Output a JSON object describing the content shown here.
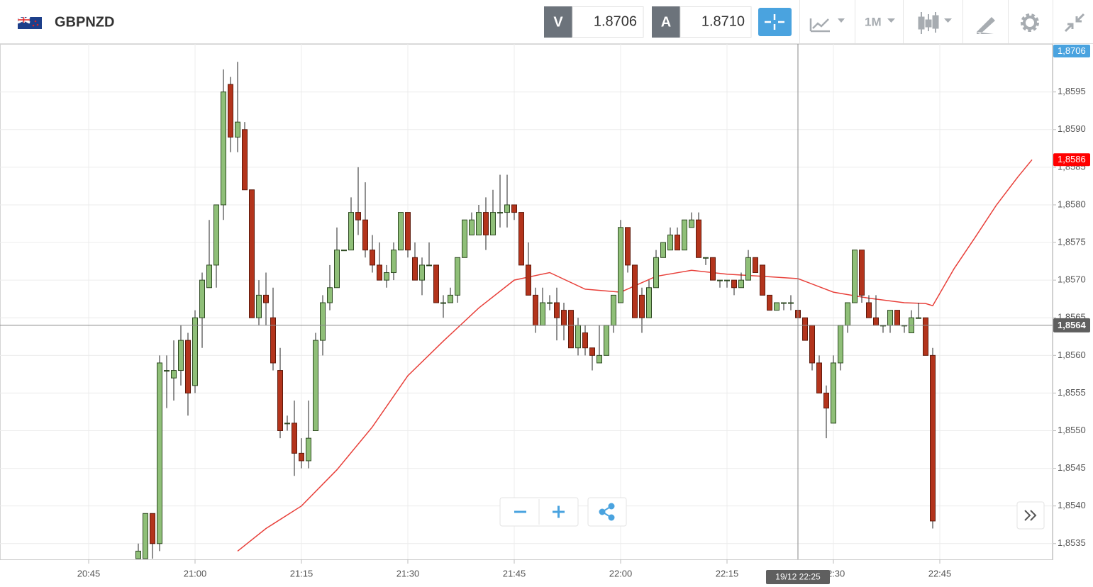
{
  "header": {
    "symbol": "GBPNZD",
    "sell_label": "V",
    "sell_price": "1.8706",
    "buy_label": "A",
    "buy_price": "1.8710",
    "timeframe": "1M"
  },
  "chart_data": {
    "type": "candlestick",
    "x": [
      "20:52",
      "20:53",
      "20:54",
      "20:55",
      "20:56",
      "20:57",
      "20:58",
      "20:59",
      "21:00",
      "21:01",
      "21:02",
      "21:03",
      "21:04",
      "21:05",
      "21:06",
      "21:07",
      "21:08",
      "21:09",
      "21:10",
      "21:11",
      "21:12",
      "21:13",
      "21:14",
      "21:15",
      "21:16",
      "21:17",
      "21:18",
      "21:19",
      "21:20",
      "21:21",
      "21:22",
      "21:23",
      "21:24",
      "21:25",
      "21:26",
      "21:27",
      "21:28",
      "21:29",
      "21:30",
      "21:31",
      "21:32",
      "21:33",
      "21:34",
      "21:35",
      "21:36",
      "21:37",
      "21:38",
      "21:39",
      "21:40",
      "21:41",
      "21:42",
      "21:43",
      "21:44",
      "21:45",
      "21:46",
      "21:47",
      "21:48",
      "21:49",
      "21:50",
      "21:51",
      "21:52",
      "21:53",
      "21:54",
      "21:55",
      "21:56",
      "21:57",
      "21:58",
      "21:59",
      "22:00",
      "22:01",
      "22:02",
      "22:03",
      "22:04",
      "22:05",
      "22:06",
      "22:07",
      "22:08",
      "22:09",
      "22:10",
      "22:11",
      "22:12",
      "22:13",
      "22:14",
      "22:15",
      "22:16",
      "22:17",
      "22:18",
      "22:19",
      "22:20",
      "22:21",
      "22:22",
      "22:23",
      "22:24",
      "22:25",
      "22:26",
      "22:27",
      "22:28",
      "22:29",
      "22:30",
      "22:31",
      "22:32",
      "22:33",
      "22:34",
      "22:35",
      "22:36",
      "22:37",
      "22:38",
      "22:39",
      "22:40",
      "22:41",
      "22:42",
      "22:43",
      "22:44"
    ],
    "open": [
      1.8533,
      1.8533,
      1.8539,
      1.8535,
      1.8558,
      1.8557,
      1.8558,
      1.8562,
      1.8556,
      1.8565,
      1.8569,
      1.8572,
      1.858,
      1.8596,
      1.8589,
      1.859,
      1.8582,
      1.8565,
      1.8568,
      1.8565,
      1.8558,
      1.8551,
      1.8551,
      1.8547,
      1.8546,
      1.855,
      1.8562,
      1.8567,
      1.8569,
      1.8574,
      1.8574,
      1.8579,
      1.8578,
      1.8574,
      1.8572,
      1.857,
      1.8571,
      1.8574,
      1.8579,
      1.8573,
      1.857,
      1.8572,
      1.8572,
      1.8567,
      1.8567,
      1.8568,
      1.8573,
      1.8576,
      1.8576,
      1.8579,
      1.8576,
      1.8579,
      1.8579,
      1.858,
      1.8579,
      1.8572,
      1.8568,
      1.8564,
      1.8567,
      1.8567,
      1.8566,
      1.8566,
      1.8561,
      1.8563,
      1.8561,
      1.8559,
      1.856,
      1.8564,
      1.8567,
      1.8577,
      1.8572,
      1.8568,
      1.8565,
      1.8569,
      1.8573,
      1.8574,
      1.8576,
      1.8574,
      1.8577,
      1.8578,
      1.8573,
      1.8573,
      1.857,
      1.857,
      1.857,
      1.8569,
      1.857,
      1.8573,
      1.8572,
      1.8568,
      1.8566,
      1.8567,
      1.8567,
      1.8566,
      1.8565,
      1.8564,
      1.8559,
      1.8555,
      1.8551,
      1.8559,
      1.8564,
      1.8567,
      1.8574,
      1.8567,
      1.8565,
      1.8564,
      1.8564,
      1.8566,
      1.8564,
      1.8563,
      1.8565,
      1.8565,
      1.856
    ],
    "high": [
      1.8535,
      1.8539,
      1.8539,
      1.856,
      1.856,
      1.8562,
      1.8564,
      1.8563,
      1.8566,
      1.8571,
      1.8578,
      1.858,
      1.8598,
      1.8597,
      1.8599,
      1.8591,
      1.8582,
      1.857,
      1.8571,
      1.8569,
      1.8561,
      1.8552,
      1.8554,
      1.8549,
      1.8554,
      1.8563,
      1.8568,
      1.8572,
      1.8577,
      1.8574,
      1.8581,
      1.8585,
      1.8583,
      1.8576,
      1.8575,
      1.8572,
      1.8575,
      1.8579,
      1.8579,
      1.8575,
      1.8573,
      1.8575,
      1.8572,
      1.8568,
      1.8569,
      1.8573,
      1.8578,
      1.8579,
      1.858,
      1.8581,
      1.8582,
      1.8584,
      1.8584,
      1.858,
      1.8579,
      1.8575,
      1.8569,
      1.8569,
      1.8568,
      1.8569,
      1.8567,
      1.8566,
      1.8565,
      1.8564,
      1.8561,
      1.8564,
      1.8564,
      1.8568,
      1.8578,
      1.8577,
      1.8572,
      1.8569,
      1.857,
      1.8574,
      1.8575,
      1.8577,
      1.8577,
      1.8578,
      1.8579,
      1.8579,
      1.8573,
      1.8573,
      1.857,
      1.857,
      1.857,
      1.8571,
      1.8574,
      1.8573,
      1.8572,
      1.8568,
      1.8567,
      1.8567,
      1.8568,
      1.8567,
      1.8565,
      1.8564,
      1.856,
      1.8556,
      1.856,
      1.8564,
      1.8567,
      1.8574,
      1.8574,
      1.8568,
      1.8568,
      1.8564,
      1.8566,
      1.8566,
      1.8564,
      1.8566,
      1.8567,
      1.8565,
      1.8561
    ],
    "low": [
      1.8533,
      1.8533,
      1.8533,
      1.8534,
      1.8553,
      1.8554,
      1.8556,
      1.8552,
      1.8555,
      1.8561,
      1.8569,
      1.8569,
      1.8578,
      1.8587,
      1.8587,
      1.8582,
      1.8565,
      1.8564,
      1.8564,
      1.8558,
      1.8549,
      1.855,
      1.8544,
      1.8545,
      1.8545,
      1.855,
      1.856,
      1.8566,
      1.8569,
      1.8574,
      1.8574,
      1.8576,
      1.8573,
      1.8571,
      1.857,
      1.8569,
      1.857,
      1.8574,
      1.8573,
      1.857,
      1.8568,
      1.8572,
      1.8567,
      1.8565,
      1.8567,
      1.8567,
      1.8573,
      1.8576,
      1.8576,
      1.8574,
      1.8576,
      1.8577,
      1.8577,
      1.8578,
      1.8572,
      1.8568,
      1.8563,
      1.8564,
      1.8566,
      1.8562,
      1.8562,
      1.8561,
      1.856,
      1.856,
      1.8558,
      1.8559,
      1.856,
      1.8563,
      1.8567,
      1.8571,
      1.8565,
      1.8563,
      1.8565,
      1.8569,
      1.8573,
      1.8574,
      1.8574,
      1.8574,
      1.8577,
      1.8573,
      1.8572,
      1.857,
      1.8569,
      1.8569,
      1.8568,
      1.8569,
      1.857,
      1.8571,
      1.8568,
      1.8566,
      1.8566,
      1.8566,
      1.8566,
      1.8565,
      1.8562,
      1.8558,
      1.8555,
      1.8549,
      1.8551,
      1.8558,
      1.8563,
      1.8567,
      1.8567,
      1.8565,
      1.8564,
      1.8563,
      1.8563,
      1.8564,
      1.8563,
      1.8563,
      1.8565,
      1.856,
      1.8537
    ],
    "close": [
      1.8534,
      1.8539,
      1.8535,
      1.8559,
      1.8558,
      1.8558,
      1.8562,
      1.8555,
      1.8565,
      1.857,
      1.8572,
      1.858,
      1.8595,
      1.8589,
      1.8591,
      1.8582,
      1.8565,
      1.8568,
      1.8567,
      1.8559,
      1.855,
      1.8551,
      1.8547,
      1.8546,
      1.8549,
      1.8562,
      1.8567,
      1.8569,
      1.8574,
      1.8574,
      1.8579,
      1.8578,
      1.8574,
      1.8572,
      1.857,
      1.8571,
      1.8574,
      1.8579,
      1.8574,
      1.857,
      1.8572,
      1.8572,
      1.8567,
      1.8567,
      1.8568,
      1.8573,
      1.8578,
      1.8578,
      1.8579,
      1.8576,
      1.8579,
      1.8579,
      1.858,
      1.8579,
      1.8572,
      1.8568,
      1.8564,
      1.8567,
      1.8567,
      1.8565,
      1.8564,
      1.8561,
      1.8564,
      1.8561,
      1.856,
      1.856,
      1.8564,
      1.8568,
      1.8577,
      1.8572,
      1.8565,
      1.8565,
      1.8569,
      1.8573,
      1.8575,
      1.8576,
      1.8574,
      1.8578,
      1.8578,
      1.8573,
      1.8573,
      1.857,
      1.857,
      1.857,
      1.8569,
      1.857,
      1.8573,
      1.8571,
      1.8568,
      1.8566,
      1.8567,
      1.8567,
      1.8567,
      1.8565,
      1.8562,
      1.8559,
      1.8555,
      1.8553,
      1.8559,
      1.8564,
      1.8567,
      1.8574,
      1.8568,
      1.8565,
      1.8564,
      1.8564,
      1.8566,
      1.8564,
      1.8564,
      1.8565,
      1.8565,
      1.856,
      1.8538
    ],
    "up_color": "#8fbf78",
    "down_color": "#b3341c",
    "moving_average": {
      "color": "#e8403a",
      "last_label": "1,8586",
      "x": [
        "21:06",
        "21:10",
        "21:15",
        "21:20",
        "21:25",
        "21:30",
        "21:35",
        "21:40",
        "21:45",
        "21:50",
        "21:55",
        "22:00",
        "22:05",
        "22:10",
        "22:15",
        "22:20",
        "22:25",
        "22:30",
        "22:35",
        "22:40",
        "22:43",
        "22:44",
        "22:47",
        "22:50",
        "22:53",
        "22:56",
        "22:58"
      ],
      "values": [
        1.8534,
        1.8537,
        1.854,
        1.85448,
        1.85505,
        1.85573,
        1.85619,
        1.85663,
        1.857,
        1.8571,
        1.85688,
        1.85684,
        1.85705,
        1.85713,
        1.85708,
        1.85705,
        1.85702,
        1.85684,
        1.85676,
        1.8567,
        1.85669,
        1.85666,
        1.85715,
        1.85757,
        1.858,
        1.85837,
        1.8586
      ]
    },
    "current_price": {
      "value": 1.8706,
      "label": "1,8706",
      "color": "#4aa3df"
    },
    "crosshair": {
      "x": "22:25",
      "y": 1.8564,
      "x_label": "19/12 22:25",
      "y_label": "1,8564"
    },
    "xlim": [
      "20:33",
      "23:01"
    ],
    "xticks": [
      "20:45",
      "21:00",
      "21:15",
      "21:30",
      "21:45",
      "22:00",
      "22:15",
      "22:30",
      "22:45"
    ],
    "ylim": [
      1.8533,
      1.8601
    ],
    "yticks": [
      {
        "value": 1.8535,
        "label": "1,8535"
      },
      {
        "value": 1.854,
        "label": "1,8540"
      },
      {
        "value": 1.8545,
        "label": "1,8545"
      },
      {
        "value": 1.855,
        "label": "1,8550"
      },
      {
        "value": 1.8555,
        "label": "1,8555"
      },
      {
        "value": 1.856,
        "label": "1,8560"
      },
      {
        "value": 1.8565,
        "label": "1,8565"
      },
      {
        "value": 1.857,
        "label": "1,8570"
      },
      {
        "value": 1.8575,
        "label": "1,8575"
      },
      {
        "value": 1.858,
        "label": "1,8580"
      },
      {
        "value": 1.8585,
        "label": "1,8585"
      },
      {
        "value": 1.859,
        "label": "1,8590"
      },
      {
        "value": 1.8595,
        "label": "1,8595"
      }
    ],
    "grid": true
  }
}
